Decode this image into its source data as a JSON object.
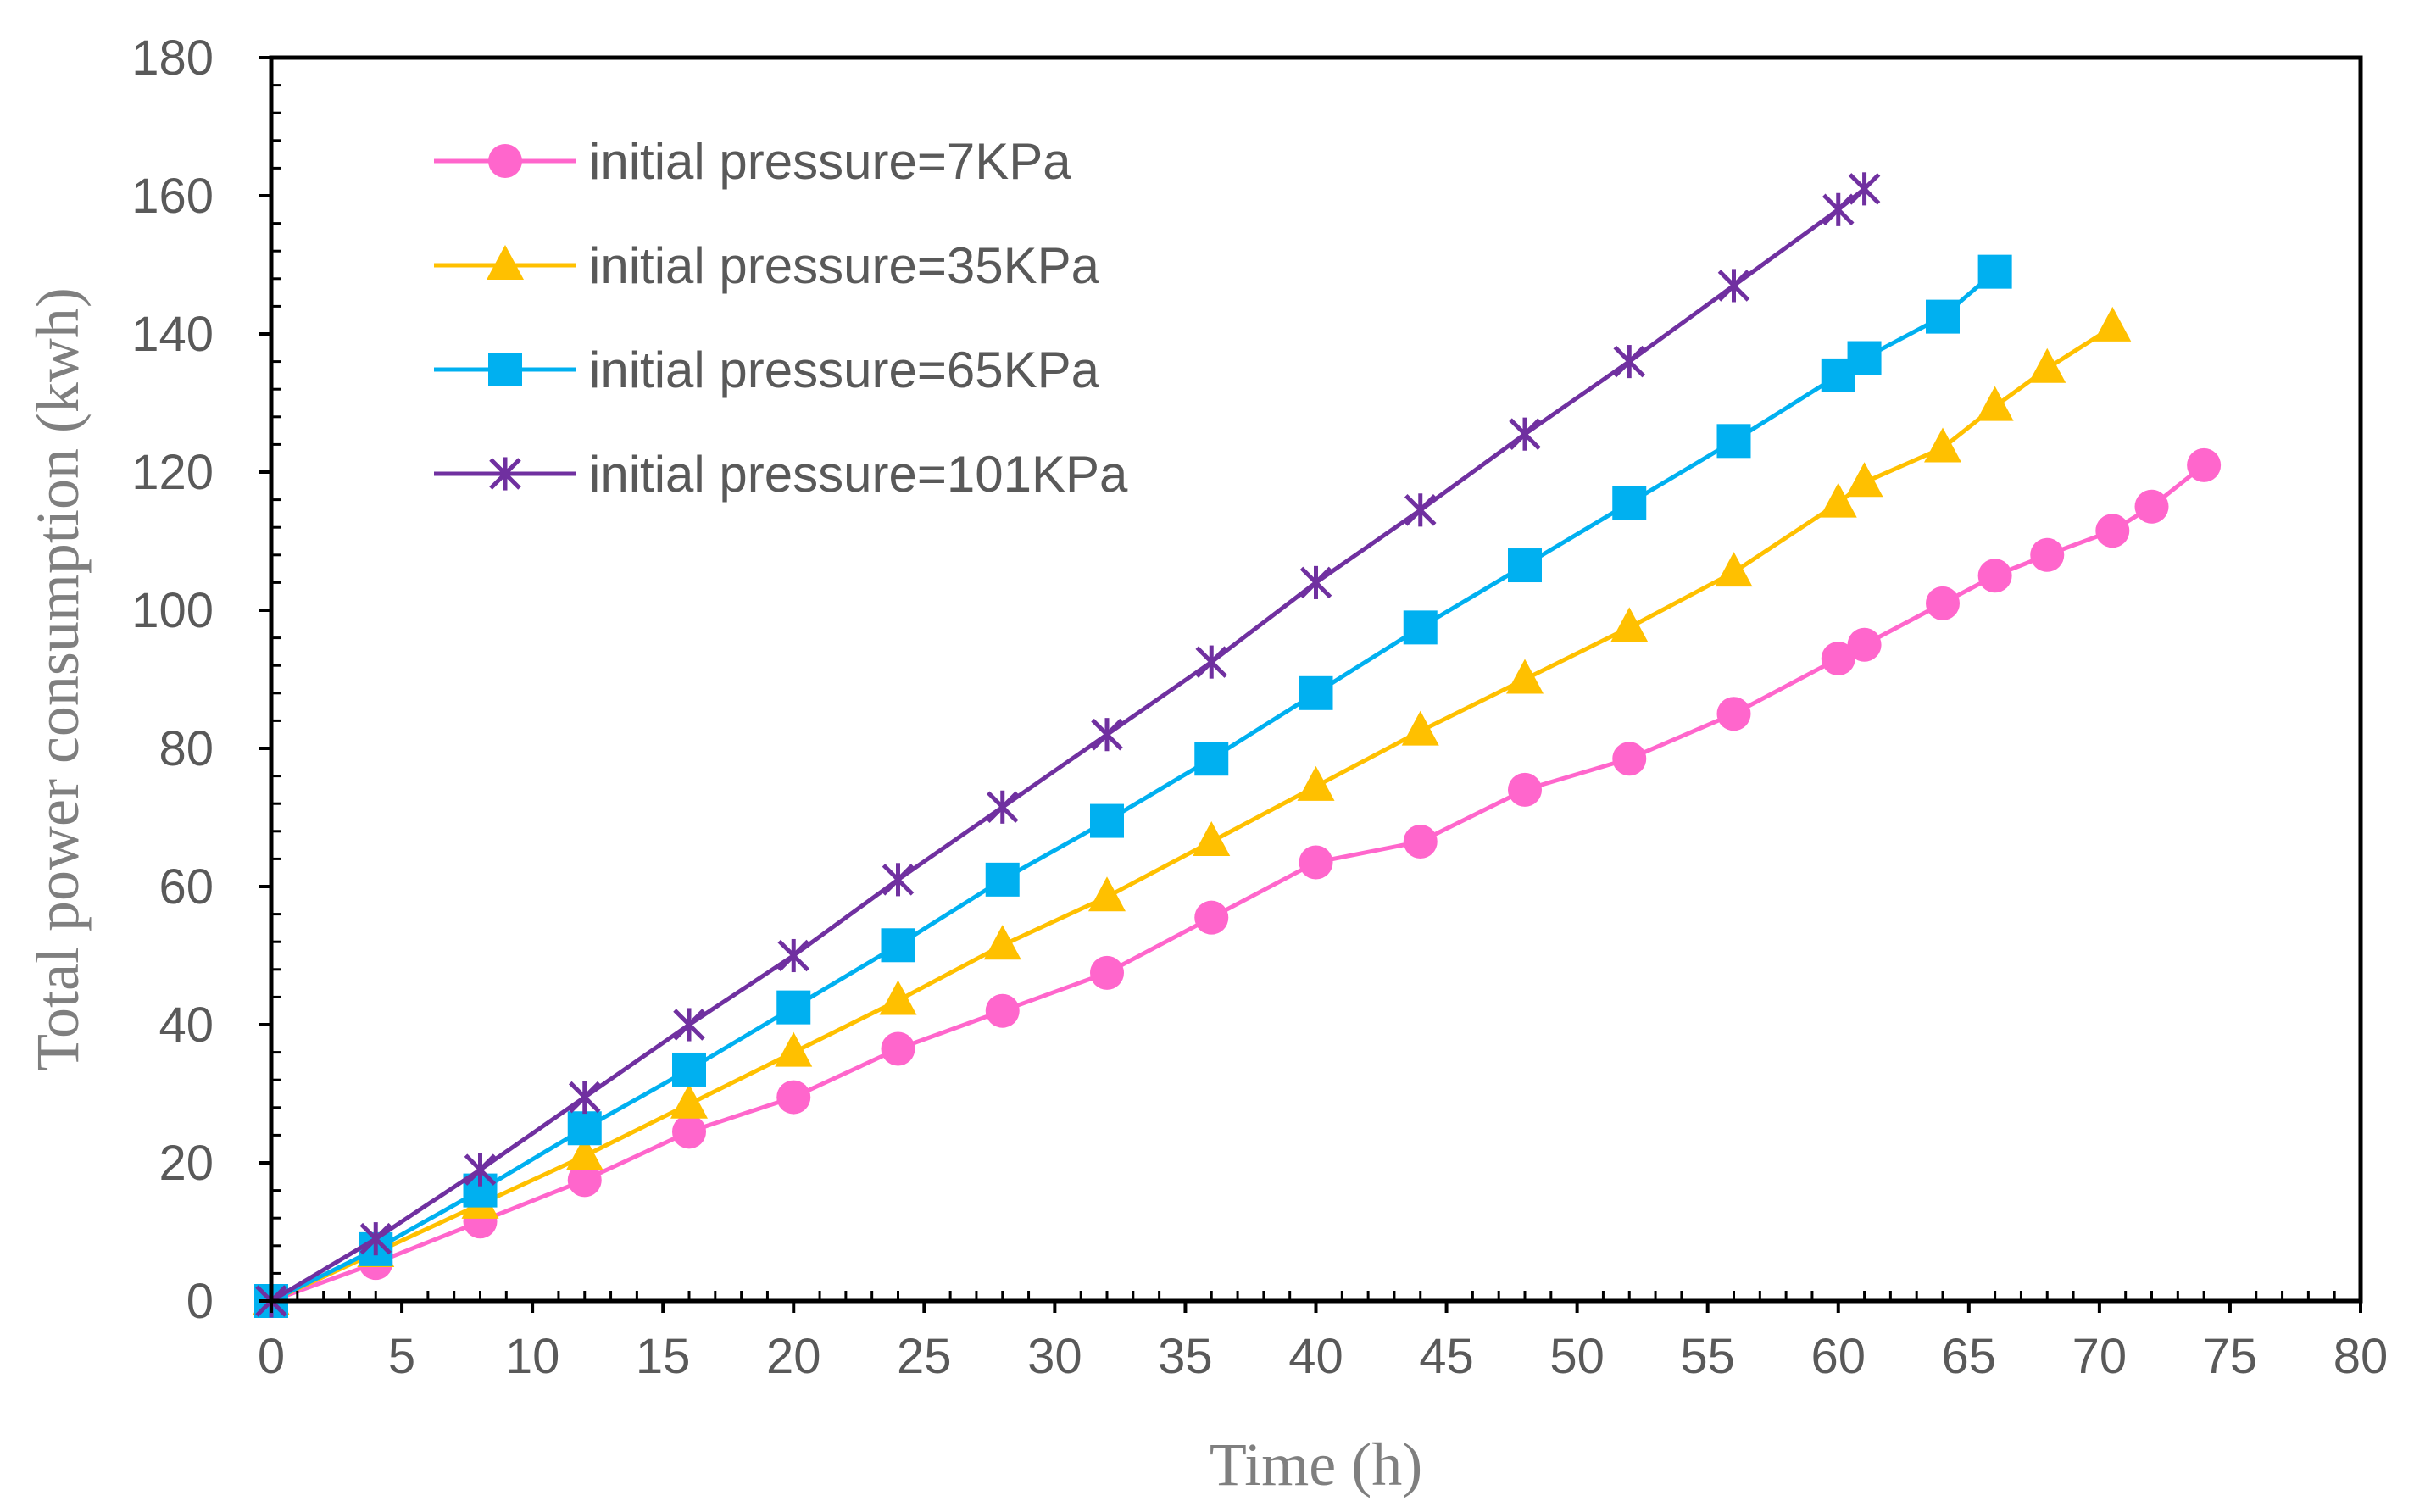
{
  "chart_data": {
    "type": "line",
    "title": "",
    "xlabel": "Time (h)",
    "ylabel": "Total power consumption (kwh)",
    "xlim": [
      0,
      80
    ],
    "ylim": [
      0,
      180
    ],
    "xticks": [
      0,
      5,
      10,
      15,
      20,
      25,
      30,
      35,
      40,
      45,
      50,
      55,
      60,
      65,
      70,
      75,
      80
    ],
    "yticks": [
      0,
      20,
      40,
      60,
      80,
      100,
      120,
      140,
      160,
      180
    ],
    "grid": false,
    "legend_position": "top-left",
    "series": [
      {
        "name": "initial pressure=7KPa",
        "color": "#ff66cc",
        "marker": "circle",
        "x": [
          0,
          4,
          8,
          12,
          16,
          20,
          24,
          28,
          32,
          36,
          40,
          44,
          48,
          52,
          56,
          60,
          61,
          64,
          66,
          68,
          70.5,
          72,
          74
        ],
        "values": [
          0,
          5.5,
          11.5,
          17.5,
          24.5,
          29.5,
          36.5,
          42,
          47.5,
          55.5,
          63.5,
          66.5,
          74,
          78.5,
          85,
          93,
          95,
          101,
          105,
          108,
          111.5,
          115,
          121
        ]
      },
      {
        "name": "initial pressure=35KPa",
        "color": "#ffc000",
        "marker": "triangle",
        "x": [
          0,
          4,
          8,
          12,
          16,
          20,
          24,
          28,
          32,
          36,
          40,
          44,
          48,
          52,
          56,
          60,
          61,
          64,
          66,
          68,
          70.5
        ],
        "values": [
          0,
          7,
          14,
          21,
          28.5,
          36,
          43.5,
          51.5,
          58.5,
          66.5,
          74.5,
          82.5,
          90,
          97.5,
          105.5,
          115.5,
          118.5,
          123.5,
          129.5,
          135,
          141
        ]
      },
      {
        "name": "initial pressure=65KPa",
        "color": "#00b0f0",
        "marker": "square",
        "x": [
          0,
          4,
          8,
          12,
          16,
          20,
          24,
          28,
          32,
          36,
          40,
          44,
          48,
          52,
          56,
          60,
          61,
          64,
          66
        ],
        "values": [
          0,
          7.5,
          16,
          25,
          33.5,
          42.5,
          51.5,
          61,
          69.5,
          78.5,
          88,
          97.5,
          106.5,
          115.5,
          124.5,
          134,
          136.5,
          142.5,
          149
        ]
      },
      {
        "name": "initial pressure=101KPa",
        "color": "#7030a0",
        "marker": "star",
        "x": [
          0,
          4,
          8,
          12,
          16,
          20,
          24,
          28,
          32,
          36,
          40,
          44,
          48,
          52,
          56,
          60,
          61
        ],
        "values": [
          0,
          9,
          19,
          29.5,
          40,
          50,
          61,
          71.5,
          82,
          92.5,
          104,
          114.5,
          125.5,
          136,
          147,
          158,
          161
        ]
      }
    ]
  }
}
